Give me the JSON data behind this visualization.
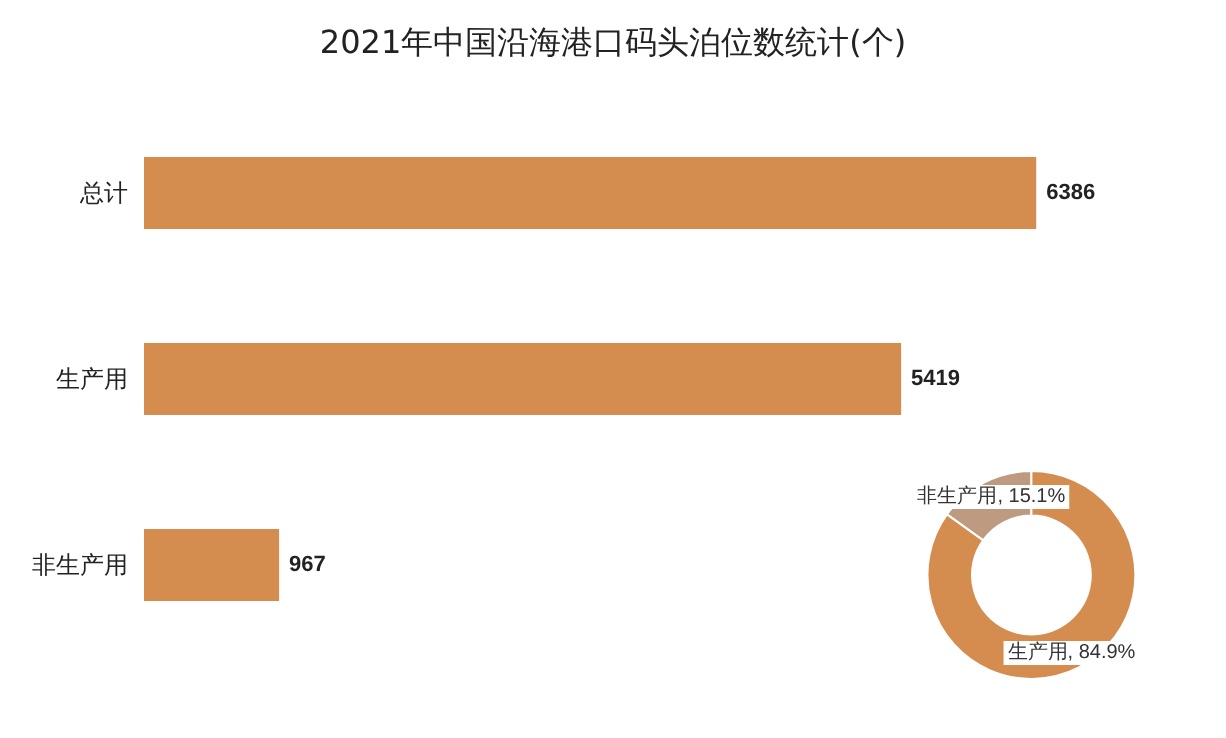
{
  "chart_data": [
    {
      "type": "bar",
      "title": "2021年中国沿海港口码头泊位数统计(个)",
      "orientation": "horizontal",
      "categories": [
        "总计",
        "生产用",
        "非生产用"
      ],
      "values": [
        6386,
        5419,
        967
      ],
      "color": "#d58c4f",
      "data_labels": true
    },
    {
      "type": "donut",
      "categories": [
        "非生产用",
        "生产用"
      ],
      "values": [
        15.1,
        84.9
      ],
      "colors": [
        "#bd9a80",
        "#d58c4f"
      ],
      "value_labels": [
        "15.1%",
        "84.9%"
      ]
    }
  ]
}
